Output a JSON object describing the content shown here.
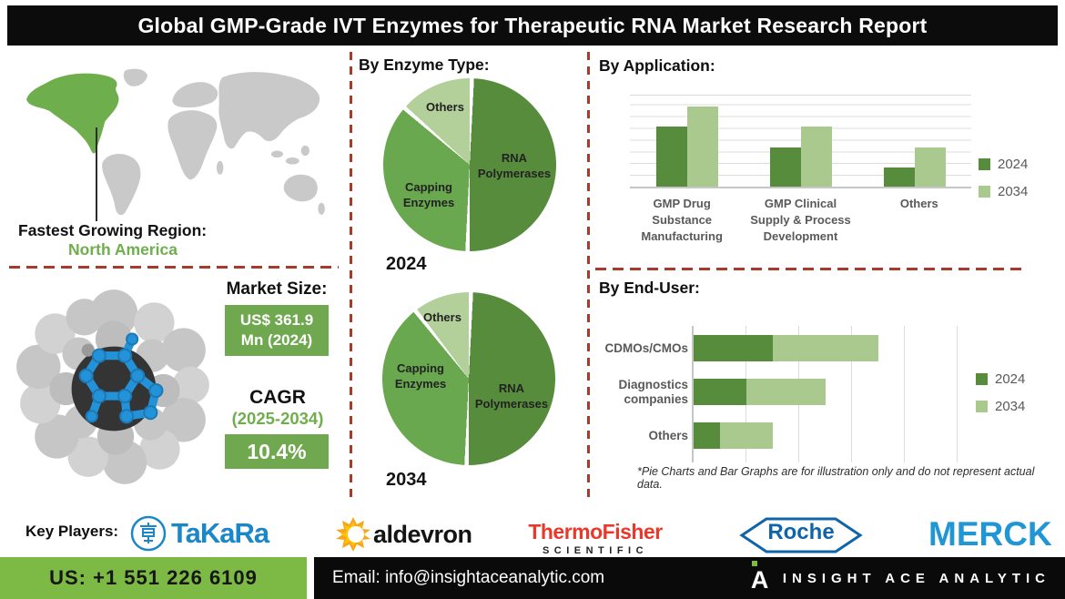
{
  "title": "Global GMP-Grade IVT Enzymes for Therapeutic RNA Market Research Report",
  "sections": {
    "enzyme_type": "By Enzyme Type:",
    "application": "By Application:",
    "end_user": "By End-User:"
  },
  "region": {
    "heading": "Fastest Growing Region:",
    "value": "North America"
  },
  "market": {
    "heading": "Market Size:",
    "value": "US$ 361.9 Mn (2024)",
    "cagr_label": "CAGR",
    "cagr_period": "(2025-2034)",
    "cagr_value": "10.4%"
  },
  "chart_data": [
    {
      "type": "pie",
      "id": "enzyme_type_2024",
      "year_label": "2024",
      "order": "clockwise-from-top",
      "slices": [
        {
          "label": "RNA Polymerases",
          "value": 50,
          "color": "#578c3c"
        },
        {
          "label": "Capping Enzymes",
          "value": 36,
          "color": "#6aa84f"
        },
        {
          "label": "Others",
          "value": 14,
          "color": "#b3d09b"
        }
      ]
    },
    {
      "type": "pie",
      "id": "enzyme_type_2034",
      "year_label": "2034",
      "order": "clockwise-from-top",
      "slices": [
        {
          "label": "RNA Polymerases",
          "value": 50,
          "color": "#578c3c"
        },
        {
          "label": "Capping Enzymes",
          "value": 39,
          "color": "#6aa84f"
        },
        {
          "label": "Others",
          "value": 11,
          "color": "#b3d09b"
        }
      ]
    },
    {
      "type": "bar",
      "id": "by_application",
      "orientation": "vertical-grouped",
      "categories": [
        "GMP Drug Substance Manufacturing",
        "GMP Clinical Supply & Process Development",
        "Others"
      ],
      "series": [
        {
          "name": "2024",
          "color": "#578c3c",
          "values": [
            66,
            43,
            21
          ]
        },
        {
          "name": "2034",
          "color": "#a9c98e",
          "values": [
            88,
            66,
            43
          ]
        }
      ],
      "ylim": [
        0,
        100
      ],
      "grid": true,
      "legend_position": "right"
    },
    {
      "type": "bar",
      "id": "by_end_user",
      "orientation": "horizontal-stacked",
      "categories": [
        "CDMOs/CMOs",
        "Diagnostics companies",
        "Others"
      ],
      "series": [
        {
          "name": "2024",
          "color": "#578c3c",
          "values": [
            15,
            10,
            5
          ]
        },
        {
          "name": "2034",
          "color": "#a9c98e",
          "values": [
            20,
            15,
            10
          ]
        }
      ],
      "bar_totals": [
        35,
        25,
        15
      ],
      "xlim": [
        0,
        50
      ],
      "grid": true,
      "legend_position": "right"
    }
  ],
  "footnote": "*Pie Charts and Bar Graphs are for illustration only and do not represent actual data.",
  "key_players": {
    "heading": "Key Players:",
    "takara": "TaKaRa",
    "aldevron": "aldevron",
    "thermo_line1": "ThermoFisher",
    "thermo_line2": "SCIENTIFIC",
    "roche": "Roche",
    "merck": "MERCK"
  },
  "footer": {
    "phone": "US: +1 551 226 6109",
    "email": "Email: info@insightaceanalytic.com",
    "brand": "INSIGHT ACE ANALYTIC",
    "brand_mark": "A"
  },
  "colors": {
    "accent_dark_green": "#578c3c",
    "accent_mid_green": "#6aa84f",
    "accent_light_green": "#a9c98e",
    "highlight_green": "#6fae4c",
    "box_green": "#70a850",
    "footer_green": "#7db945",
    "dash_red": "#a63a2d",
    "title_black": "#0c0c0c"
  }
}
